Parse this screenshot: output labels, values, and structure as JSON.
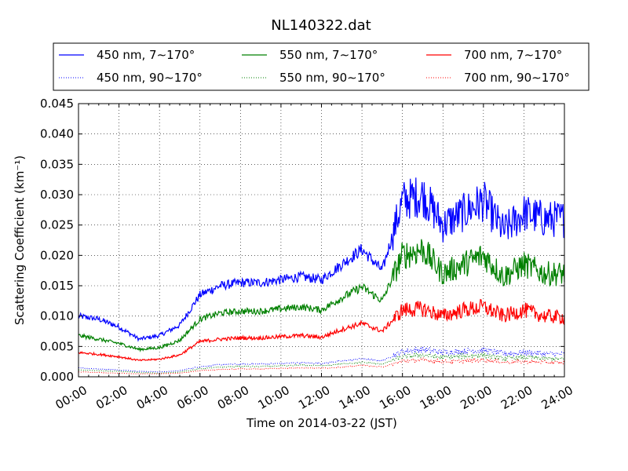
{
  "chart_data": {
    "type": "line",
    "title": "NL140322.dat",
    "xlabel": "Time on 2014-03-22 (JST)",
    "ylabel": "Scattering Coefficient (km⁻¹)",
    "xlim": [
      "2014-03-22 00:00",
      "2014-03-23 00:00"
    ],
    "ylim": [
      0.0,
      0.045
    ],
    "x_ticks": [
      "00:00",
      "02:00",
      "04:00",
      "06:00",
      "08:00",
      "10:00",
      "12:00",
      "14:00",
      "16:00",
      "18:00",
      "20:00",
      "22:00",
      "24:00"
    ],
    "y_ticks": [
      "0.000",
      "0.005",
      "0.010",
      "0.015",
      "0.020",
      "0.025",
      "0.030",
      "0.035",
      "0.040",
      "0.045"
    ],
    "grid": true,
    "legend_position": "top",
    "x_time_hours": [
      0,
      1,
      2,
      3,
      4,
      5,
      6,
      7,
      8,
      9,
      10,
      11,
      12,
      13,
      14,
      15,
      16,
      17,
      18,
      19,
      20,
      21,
      22,
      23,
      24
    ],
    "series": [
      {
        "name": "450 nm, 7∼170°",
        "color": "#0000ff",
        "style": "solid",
        "values": [
          0.01,
          0.0095,
          0.0082,
          0.0062,
          0.0068,
          0.0085,
          0.0135,
          0.015,
          0.0155,
          0.0155,
          0.016,
          0.0165,
          0.016,
          0.0185,
          0.021,
          0.0175,
          0.029,
          0.03,
          0.025,
          0.027,
          0.029,
          0.024,
          0.027,
          0.026,
          0.026
        ]
      },
      {
        "name": "450 nm, 90∼170°",
        "color": "#0000ff",
        "style": "dotted",
        "values": [
          0.0015,
          0.0013,
          0.0011,
          0.0009,
          0.0008,
          0.001,
          0.0017,
          0.002,
          0.0021,
          0.0021,
          0.0022,
          0.0023,
          0.0022,
          0.0026,
          0.003,
          0.0026,
          0.0042,
          0.0045,
          0.004,
          0.0042,
          0.0044,
          0.0038,
          0.004,
          0.0038,
          0.0037
        ]
      },
      {
        "name": "550 nm, 7∼170°",
        "color": "#008000",
        "style": "solid",
        "values": [
          0.0068,
          0.0062,
          0.0055,
          0.0045,
          0.0048,
          0.006,
          0.0095,
          0.0105,
          0.0108,
          0.0108,
          0.0112,
          0.0115,
          0.011,
          0.013,
          0.0148,
          0.0125,
          0.02,
          0.021,
          0.017,
          0.0185,
          0.02,
          0.0165,
          0.0185,
          0.017,
          0.017
        ]
      },
      {
        "name": "550 nm, 90∼170°",
        "color": "#008000",
        "style": "dotted",
        "values": [
          0.0011,
          0.001,
          0.0009,
          0.0007,
          0.0006,
          0.0008,
          0.0013,
          0.0016,
          0.0017,
          0.0017,
          0.0018,
          0.0019,
          0.0018,
          0.0021,
          0.0024,
          0.0021,
          0.0033,
          0.0036,
          0.0032,
          0.0034,
          0.0036,
          0.003,
          0.0032,
          0.003,
          0.0029
        ]
      },
      {
        "name": "700 nm, 7∼170°",
        "color": "#ff0000",
        "style": "solid",
        "values": [
          0.004,
          0.0037,
          0.0033,
          0.0027,
          0.0029,
          0.0036,
          0.0058,
          0.0062,
          0.0064,
          0.0064,
          0.0066,
          0.0068,
          0.0065,
          0.0078,
          0.0088,
          0.0075,
          0.011,
          0.0112,
          0.01,
          0.011,
          0.0115,
          0.01,
          0.011,
          0.01,
          0.0098
        ]
      },
      {
        "name": "700 nm, 90∼170°",
        "color": "#ff0000",
        "style": "dotted",
        "values": [
          0.0008,
          0.0007,
          0.0006,
          0.0005,
          0.0005,
          0.0006,
          0.001,
          0.0012,
          0.0013,
          0.0013,
          0.0014,
          0.0015,
          0.0014,
          0.0016,
          0.0019,
          0.0016,
          0.0026,
          0.0028,
          0.0025,
          0.0026,
          0.0028,
          0.0024,
          0.0025,
          0.0024,
          0.0023
        ]
      }
    ]
  }
}
